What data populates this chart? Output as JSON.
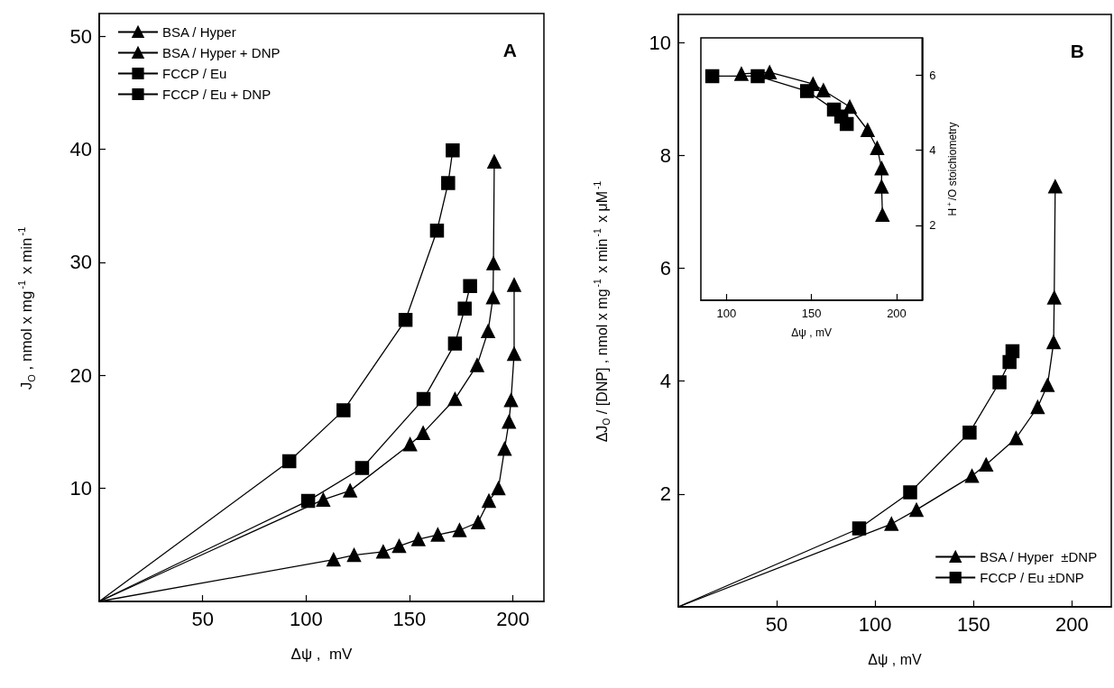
{
  "chart_data": [
    {
      "type": "line",
      "xlabel": "Δψ ,  mV",
      "ylabel": "J$_{O}$ , nmol x mg$^{-1}$ x min$^{-1}$",
      "xlim": [
        0,
        215
      ],
      "ylim": [
        0,
        52
      ],
      "xticks": [
        50,
        100,
        150,
        200
      ],
      "yticks": [
        10,
        20,
        30,
        40,
        50
      ],
      "legend": "top left",
      "annotations": [
        "A"
      ],
      "series": [
        {
          "name": "BSA / Hyper",
          "color": "#000000",
          "marker": "triangle",
          "x": [
            113.3,
            123.2,
            137.3,
            145,
            154.3,
            163.7,
            174.2,
            183.2,
            188.4,
            193,
            196,
            198.1,
            199.1,
            200.6,
            200.6
          ],
          "values": [
            3.7,
            4.1,
            4.4,
            4.9,
            5.5,
            5.9,
            6.3,
            7.0,
            8.9,
            10.0,
            13.5,
            15.9,
            17.8,
            21.9,
            28.0
          ]
        },
        {
          "name": "BSA / Hyper + DNP",
          "color": "#000000",
          "marker": "triangle",
          "x": [
            108.3,
            121.3,
            150.3,
            156.6,
            172,
            182.7,
            188,
            190.4,
            190.6,
            191
          ],
          "values": [
            9.0,
            9.8,
            13.9,
            14.9,
            17.9,
            20.9,
            23.9,
            26.9,
            29.9,
            38.9
          ]
        },
        {
          "name": "FCCP / Eu",
          "color": "#000000",
          "marker": "square",
          "x": [
            101,
            127.1,
            156.8,
            172,
            176.7,
            179.3
          ],
          "values": [
            8.9,
            11.8,
            17.9,
            22.8,
            25.9,
            27.9
          ]
        },
        {
          "name": "FCCP / Eu + DNP",
          "color": "#000000",
          "marker": "square",
          "x": [
            91.9,
            118.1,
            148.1,
            163.3,
            168.7,
            170.9
          ],
          "values": [
            12.4,
            16.9,
            24.9,
            32.8,
            37.0,
            39.9
          ]
        },
        {
          "color": "#000000",
          "marker": "none",
          "x": [
            0,
            113.3
          ],
          "values": [
            0,
            3.7
          ]
        },
        {
          "color": "#000000",
          "marker": "none",
          "x": [
            0,
            108.3
          ],
          "values": [
            0,
            9.0
          ]
        },
        {
          "color": "#000000",
          "marker": "none",
          "x": [
            0,
            101
          ],
          "values": [
            0,
            8.9
          ]
        },
        {
          "color": "#000000",
          "marker": "none",
          "x": [
            0,
            91.9
          ],
          "values": [
            0,
            12.4
          ]
        }
      ]
    },
    {
      "type": "line",
      "xlabel": "Δψ , mV",
      "ylabel": "ΔJ$_{O}$ / [DNP] , nmol x mg$^{-1}$ x min$^{-1}$ x μM$^{-1}$",
      "xlim": [
        0,
        220
      ],
      "ylim": [
        0,
        10.5
      ],
      "xticks": [
        50,
        100,
        150,
        200
      ],
      "yticks": [
        2,
        4,
        6,
        8,
        10
      ],
      "legend": "bottom right",
      "annotations": [
        "B"
      ],
      "series": [
        {
          "name": "BSA / Hyper  ±DNP",
          "color": "#000000",
          "marker": "triangle",
          "x": [
            108.3,
            121,
            149.2,
            156.4,
            171.6,
            182.6,
            187.6,
            190.7,
            191,
            191.5
          ],
          "values": [
            1.47,
            1.72,
            2.32,
            2.52,
            2.99,
            3.54,
            3.93,
            4.69,
            5.48,
            7.45
          ]
        },
        {
          "name": "FCCP / Eu ±DNP",
          "color": "#000000",
          "marker": "square",
          "x": [
            91.9,
            117.8,
            148,
            163.2,
            168.3,
            169.8
          ],
          "values": [
            1.39,
            2.03,
            3.09,
            3.98,
            4.34,
            4.53
          ]
        },
        {
          "color": "#000000",
          "marker": "none",
          "x": [
            0,
            108.3
          ],
          "values": [
            0,
            1.47
          ]
        },
        {
          "color": "#000000",
          "marker": "none",
          "x": [
            0,
            91.9
          ],
          "values": [
            0,
            1.39
          ]
        }
      ]
    },
    {
      "type": "line",
      "xlabel": "Δψ , mV",
      "y2label": "H$^{+}$/O stoichiometry",
      "xlim": [
        85,
        215
      ],
      "xticks": [
        100,
        150,
        200
      ],
      "y2lim": [
        0,
        7
      ],
      "y2ticks": [
        2,
        4,
        6
      ],
      "series": [
        {
          "color": "#000000",
          "marker": "triangle",
          "axis": "y2",
          "x": [
            108.8,
            125.4,
            150.9,
            157,
            172.5,
            183,
            188.6,
            191.2,
            191.2,
            191.7
          ],
          "values": [
            6.04,
            6.08,
            5.77,
            5.6,
            5.16,
            4.54,
            4.06,
            3.52,
            3.03,
            2.28
          ]
        },
        {
          "color": "#000000",
          "marker": "square",
          "axis": "y2",
          "x": [
            91.7,
            118.4,
            147.4,
            163.2,
            167.5,
            170.7
          ],
          "values": [
            5.98,
            5.98,
            5.58,
            5.09,
            4.9,
            4.7
          ]
        }
      ]
    }
  ]
}
